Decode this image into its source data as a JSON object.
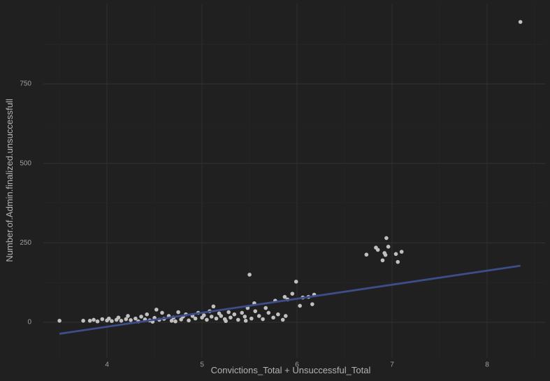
{
  "chart_data": {
    "type": "scatter",
    "x_label": "Convictions_Total + Unsuccessful_Total",
    "y_label": "Number.of.Admin.finalized.unsuccessfull",
    "xlim": [
      3.33,
      8.61
    ],
    "ylim": [
      -112,
      1003
    ],
    "xticks": [
      4,
      5,
      6,
      7,
      8
    ],
    "yticks": [
      0,
      250,
      500,
      750
    ],
    "minor_xticks": [
      3.5,
      4.5,
      5.5,
      6.5,
      7.5,
      8.5
    ],
    "minor_yticks": [
      125,
      375,
      625,
      875
    ],
    "grid": true,
    "point_color": "#c0c0c0",
    "x": [
      3.5,
      3.75,
      8.35,
      6.73,
      6.83,
      6.85,
      6.9,
      6.92,
      6.93,
      6.94,
      6.96,
      7.04,
      7.06,
      7.1,
      5.5,
      5.99,
      5.77,
      5.87,
      5.9,
      5.95,
      6.03,
      6.12,
      6.16,
      6.18,
      6.06,
      5.67,
      5.55,
      3.82,
      3.86,
      3.9,
      3.95,
      4.0,
      4.02,
      4.05,
      4.1,
      4.12,
      4.15,
      4.2,
      4.22,
      4.25,
      4.3,
      4.33,
      4.36,
      4.4,
      4.42,
      4.45,
      4.5,
      4.52,
      4.55,
      4.58,
      4.6,
      4.65,
      4.68,
      4.7,
      4.75,
      4.78,
      4.8,
      4.83,
      4.86,
      4.9,
      4.93,
      4.96,
      5.0,
      5.02,
      5.05,
      5.08,
      5.1,
      5.12,
      5.15,
      5.18,
      5.2,
      5.24,
      5.28,
      5.3,
      5.34,
      5.38,
      5.42,
      5.45,
      5.48,
      5.52,
      5.56,
      5.6,
      5.64,
      5.7,
      5.75,
      5.8,
      5.85,
      5.88,
      4.48,
      4.72,
      5.25,
      5.46
    ],
    "y": [
      5,
      5,
      945,
      213,
      235,
      228,
      195,
      218,
      212,
      265,
      238,
      215,
      190,
      222,
      150,
      128,
      68,
      80,
      72,
      90,
      52,
      80,
      57,
      87,
      78,
      45,
      60,
      5,
      8,
      3,
      10,
      6,
      12,
      4,
      8,
      15,
      5,
      10,
      20,
      7,
      12,
      3,
      18,
      9,
      25,
      6,
      14,
      40,
      8,
      30,
      11,
      20,
      5,
      15,
      32,
      9,
      18,
      25,
      6,
      20,
      12,
      30,
      15,
      22,
      8,
      35,
      18,
      50,
      12,
      28,
      20,
      10,
      32,
      15,
      25,
      8,
      30,
      18,
      45,
      12,
      35,
      20,
      10,
      30,
      15,
      25,
      8,
      20,
      2,
      3,
      4,
      5
    ],
    "trend": {
      "color": "#3d4d8a",
      "x": [
        3.5,
        8.35
      ],
      "y": [
        -36,
        178
      ]
    }
  }
}
